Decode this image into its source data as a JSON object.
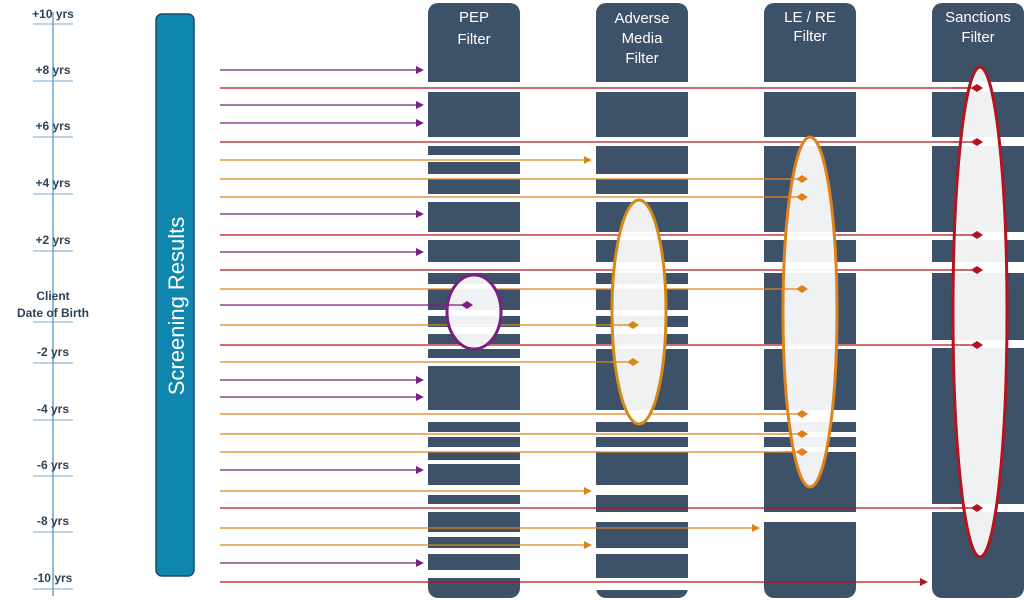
{
  "axis": {
    "labels": [
      "+10 yrs",
      "+8 yrs",
      "+6 yrs",
      "+4 yrs",
      "+2 yrs",
      "Client",
      "Date of Birth",
      "-2 yrs",
      "-4 yrs",
      "-6 yrs",
      "-8 yrs",
      "-10 yrs"
    ]
  },
  "screening_results": {
    "label": "Screening Results"
  },
  "filters": [
    {
      "title_lines": [
        "PEP",
        "Filter"
      ],
      "ellipse_color": "#7b1f82"
    },
    {
      "title_lines": [
        "Adverse",
        "Media",
        "Filter"
      ],
      "ellipse_color": "#d48a1a"
    },
    {
      "title_lines": [
        "LE / RE",
        "Filter"
      ],
      "ellipse_color": "#e0821c"
    },
    {
      "title_lines": [
        "Sanctions",
        "Filter"
      ],
      "ellipse_color": "#b3141e"
    }
  ],
  "colors": {
    "filter_column": "#3d5168",
    "results_bar": "#0e86ad",
    "axis_line": "#4a8fbf",
    "pep_arrow": "#7b1f82",
    "adverse_arrow": "#d48a1a",
    "le_re_arrow": "#e0821c",
    "sanctions_arrow": "#b3141e"
  },
  "arrows": [
    {
      "type": "pep",
      "target": "pep"
    },
    {
      "type": "sanctions",
      "target": "sanctions"
    },
    {
      "type": "pep",
      "target": "pep"
    },
    {
      "type": "pep",
      "target": "pep"
    },
    {
      "type": "sanctions",
      "target": "sanctions"
    },
    {
      "type": "adverse",
      "target": "adverse"
    },
    {
      "type": "le_re",
      "target": "le_re"
    },
    {
      "type": "le_re",
      "target": "le_re"
    },
    {
      "type": "pep",
      "target": "pep"
    },
    {
      "type": "sanctions",
      "target": "sanctions"
    },
    {
      "type": "pep",
      "target": "pep"
    },
    {
      "type": "sanctions",
      "target": "sanctions"
    },
    {
      "type": "le_re",
      "target": "le_re"
    },
    {
      "type": "pep",
      "target": "pep"
    },
    {
      "type": "adverse",
      "target": "adverse"
    },
    {
      "type": "sanctions",
      "target": "sanctions"
    },
    {
      "type": "adverse",
      "target": "adverse"
    },
    {
      "type": "pep",
      "target": "pep"
    },
    {
      "type": "pep",
      "target": "pep"
    },
    {
      "type": "le_re",
      "target": "le_re"
    },
    {
      "type": "le_re",
      "target": "le_re"
    },
    {
      "type": "le_re",
      "target": "le_re"
    },
    {
      "type": "pep",
      "target": "pep"
    },
    {
      "type": "adverse",
      "target": "adverse"
    },
    {
      "type": "sanctions",
      "target": "sanctions"
    },
    {
      "type": "le_re",
      "target": "le_re"
    },
    {
      "type": "adverse",
      "target": "adverse"
    },
    {
      "type": "pep",
      "target": "pep"
    },
    {
      "type": "sanctions",
      "target": "sanctions"
    }
  ]
}
